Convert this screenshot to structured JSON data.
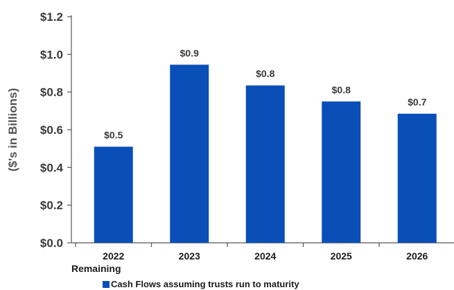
{
  "chart_data": {
    "type": "bar",
    "categories": [
      "2022\nRemaining",
      "2023",
      "2024",
      "2025",
      "2026"
    ],
    "values": [
      0.51,
      0.945,
      0.835,
      0.75,
      0.685
    ],
    "data_labels": [
      "$0.5",
      "$0.9",
      "$0.8",
      "$0.8",
      "$0.7"
    ],
    "series": [
      {
        "name": "Cash Flows assuming trusts run to maturity",
        "values": [
          0.51,
          0.945,
          0.835,
          0.75,
          0.685
        ]
      }
    ],
    "ylabel": "($'s in Billions)",
    "xlabel": "",
    "ylim": [
      0,
      1.2
    ],
    "yticks": [
      0.0,
      0.2,
      0.4,
      0.6,
      0.8,
      1.0,
      1.2
    ],
    "ytick_labels": [
      "$0.0",
      "$0.2",
      "$0.4",
      "$0.6",
      "$0.8",
      "$1.0",
      "$1.2"
    ],
    "grid": false,
    "legend_position": "bottom",
    "colors": {
      "bar": "#0a4fb8",
      "axis": "#555555"
    }
  }
}
